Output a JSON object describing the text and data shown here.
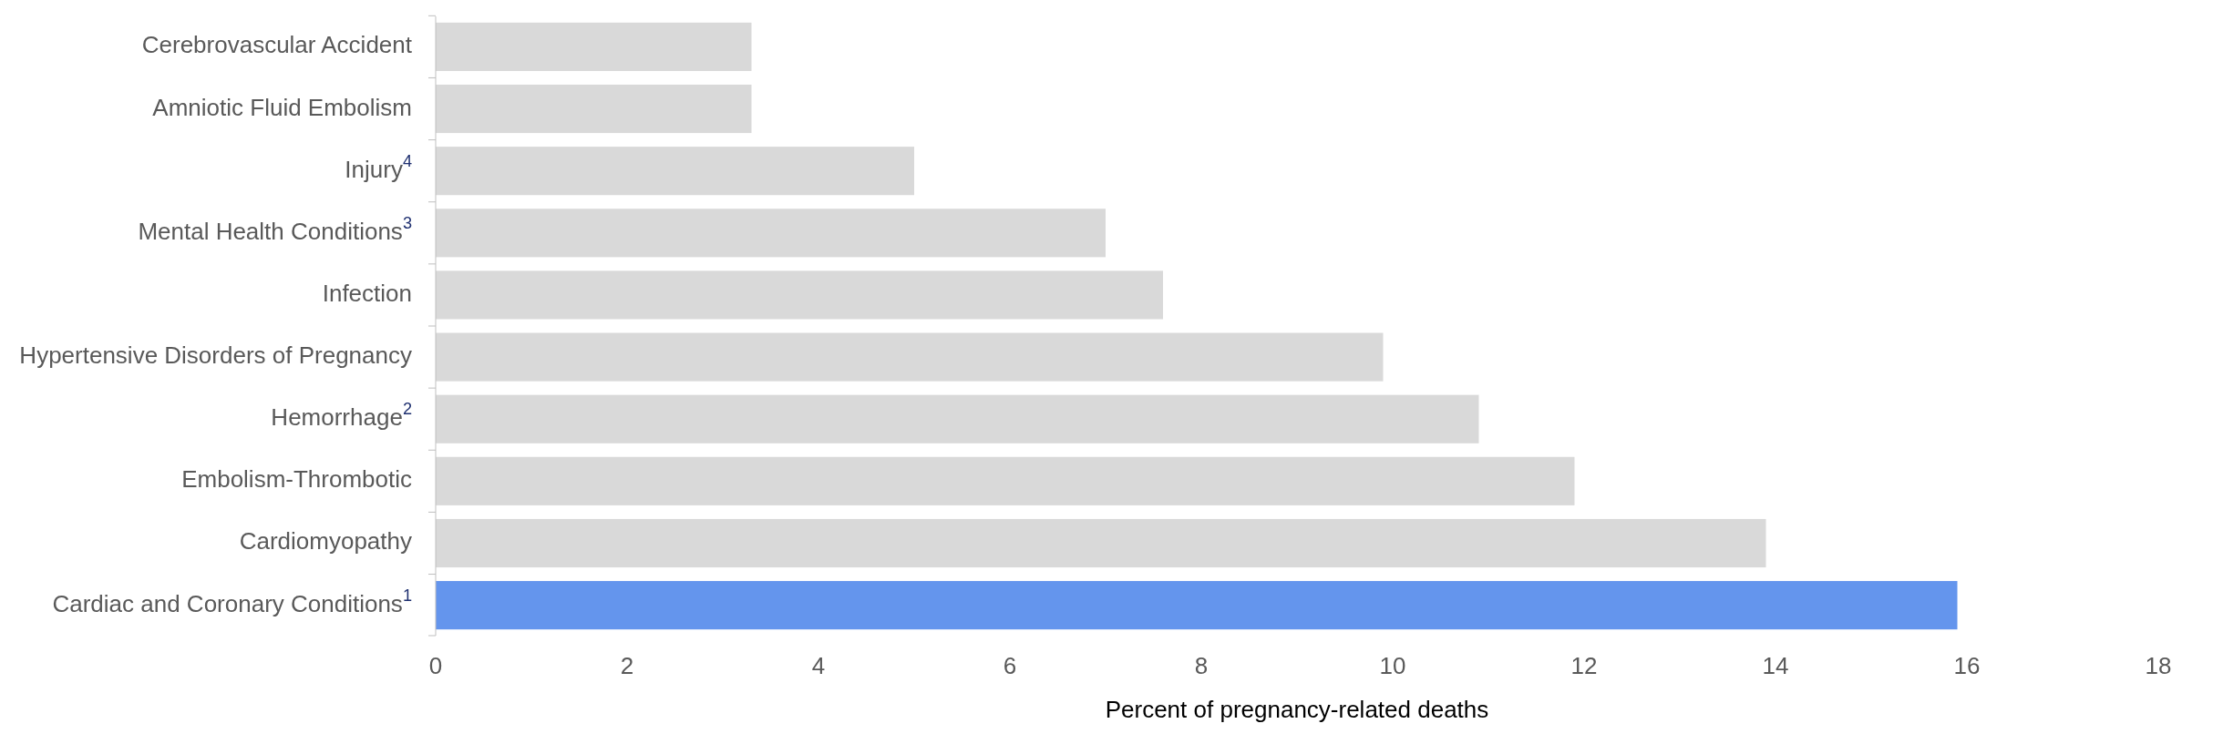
{
  "chart_data": {
    "type": "bar",
    "orientation": "horizontal",
    "xlabel": "Percent of pregnancy-related deaths",
    "categories": [
      "Cerebrovascular Accident",
      "Amniotic Fluid Embolism",
      "Injury$^{4}$",
      "Mental Health Conditions$^{3}$",
      "Infection",
      "Hypertensive Disorders of Pregnancy",
      "Hemorrhage$^{2}$",
      "Embolism-Thrombotic",
      "Cardiomyopathy",
      "Cardiac and Coronary Conditions$^{1}$"
    ],
    "values": [
      3.3,
      3.3,
      5.0,
      7.0,
      7.6,
      9.9,
      10.9,
      11.9,
      13.9,
      15.9
    ],
    "colors": [
      "#d9d9d9",
      "#d9d9d9",
      "#d9d9d9",
      "#d9d9d9",
      "#d9d9d9",
      "#d9d9d9",
      "#d9d9d9",
      "#d9d9d9",
      "#d9d9d9",
      "#6495ed"
    ],
    "xlim": [
      0,
      18
    ],
    "xticks": [
      0,
      2,
      4,
      6,
      8,
      10,
      12,
      14,
      16,
      18
    ],
    "grid": false
  }
}
